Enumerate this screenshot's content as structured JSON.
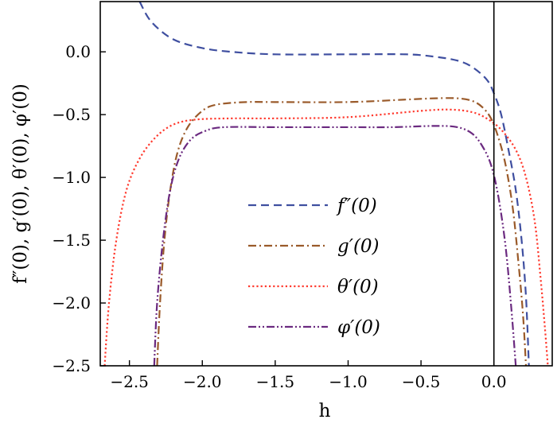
{
  "chart_data": {
    "type": "line",
    "title": "",
    "xlabel": "h",
    "ylabel": "f″(0), g′(0), θ′(0), φ′(0)",
    "xlim": [
      -2.7,
      0.4
    ],
    "ylim": [
      -2.5,
      0.4
    ],
    "xticks": [
      -2.5,
      -2.0,
      -1.5,
      -1.0,
      -0.5,
      0.0
    ],
    "xtick_labels": [
      "−2.5",
      "−2.0",
      "−1.5",
      "−1.0",
      "−0.5",
      "0.0"
    ],
    "yticks": [
      0.0,
      -0.5,
      -1.0,
      -1.5,
      -2.0,
      -2.5
    ],
    "ytick_labels": [
      "0.0",
      "−0.5",
      "−1.0",
      "−1.5",
      "−2.0",
      "−2.5"
    ],
    "grid": false,
    "legend_position": "center",
    "vertical_reference_line": 0.0,
    "series": [
      {
        "name": "f″(0)",
        "color": "#3f4fa0",
        "dash": "dashed",
        "branches": [
          [
            [
              -2.43,
              0.4
            ],
            [
              -2.35,
              0.24
            ],
            [
              -2.2,
              0.1
            ],
            [
              -2.0,
              0.03
            ],
            [
              -1.8,
              0.0
            ],
            [
              -1.5,
              -0.02
            ],
            [
              -1.0,
              -0.02
            ],
            [
              -0.6,
              -0.02
            ],
            [
              -0.4,
              -0.04
            ],
            [
              -0.25,
              -0.07
            ],
            [
              -0.15,
              -0.12
            ],
            [
              -0.05,
              -0.22
            ],
            [
              0.0,
              -0.33
            ],
            [
              0.05,
              -0.5
            ],
            [
              0.1,
              -0.78
            ],
            [
              0.15,
              -1.1
            ],
            [
              0.19,
              -1.5
            ],
            [
              0.22,
              -1.95
            ],
            [
              0.24,
              -2.5
            ]
          ]
        ]
      },
      {
        "name": "g′(0)",
        "color": "#9a5a2a",
        "dash": "dashdot",
        "branches": [
          [
            [
              -2.31,
              -2.5
            ],
            [
              -2.29,
              -2.0
            ],
            [
              -2.26,
              -1.5
            ],
            [
              -2.22,
              -1.1
            ],
            [
              -2.17,
              -0.8
            ],
            [
              -2.1,
              -0.6
            ],
            [
              -2.0,
              -0.47
            ],
            [
              -1.9,
              -0.42
            ],
            [
              -1.7,
              -0.4
            ],
            [
              -1.5,
              -0.4
            ],
            [
              -1.0,
              -0.4
            ],
            [
              -0.6,
              -0.38
            ],
            [
              -0.4,
              -0.37
            ],
            [
              -0.25,
              -0.37
            ],
            [
              -0.15,
              -0.39
            ],
            [
              -0.08,
              -0.44
            ],
            [
              -0.02,
              -0.53
            ],
            [
              0.03,
              -0.68
            ],
            [
              0.08,
              -0.9
            ],
            [
              0.13,
              -1.25
            ],
            [
              0.17,
              -1.7
            ],
            [
              0.2,
              -2.1
            ],
            [
              0.22,
              -2.5
            ]
          ]
        ]
      },
      {
        "name": "θ′(0)",
        "color": "#ff3a2e",
        "dash": "dotted",
        "branches": [
          [
            [
              -2.67,
              -2.5
            ],
            [
              -2.64,
              -2.0
            ],
            [
              -2.59,
              -1.5
            ],
            [
              -2.52,
              -1.1
            ],
            [
              -2.43,
              -0.85
            ],
            [
              -2.32,
              -0.68
            ],
            [
              -2.2,
              -0.58
            ],
            [
              -2.05,
              -0.54
            ],
            [
              -1.8,
              -0.53
            ],
            [
              -1.5,
              -0.53
            ],
            [
              -1.0,
              -0.52
            ],
            [
              -0.5,
              -0.47
            ],
            [
              -0.3,
              -0.46
            ],
            [
              -0.15,
              -0.48
            ],
            [
              -0.05,
              -0.53
            ],
            [
              0.05,
              -0.62
            ],
            [
              0.15,
              -0.78
            ],
            [
              0.22,
              -1.0
            ],
            [
              0.28,
              -1.35
            ],
            [
              0.32,
              -1.8
            ],
            [
              0.35,
              -2.2
            ],
            [
              0.37,
              -2.5
            ]
          ]
        ]
      },
      {
        "name": "φ′(0)",
        "color": "#6b2a80",
        "dash": "dashdotdot",
        "branches": [
          [
            [
              -2.33,
              -2.5
            ],
            [
              -2.31,
              -2.0
            ],
            [
              -2.27,
              -1.5
            ],
            [
              -2.22,
              -1.1
            ],
            [
              -2.16,
              -0.85
            ],
            [
              -2.08,
              -0.7
            ],
            [
              -1.98,
              -0.63
            ],
            [
              -1.85,
              -0.6
            ],
            [
              -1.5,
              -0.6
            ],
            [
              -1.0,
              -0.6
            ],
            [
              -0.7,
              -0.6
            ],
            [
              -0.4,
              -0.59
            ],
            [
              -0.25,
              -0.6
            ],
            [
              -0.15,
              -0.65
            ],
            [
              -0.08,
              -0.75
            ],
            [
              -0.02,
              -0.9
            ],
            [
              0.03,
              -1.15
            ],
            [
              0.08,
              -1.55
            ],
            [
              0.12,
              -2.05
            ],
            [
              0.15,
              -2.5
            ]
          ]
        ]
      }
    ]
  }
}
